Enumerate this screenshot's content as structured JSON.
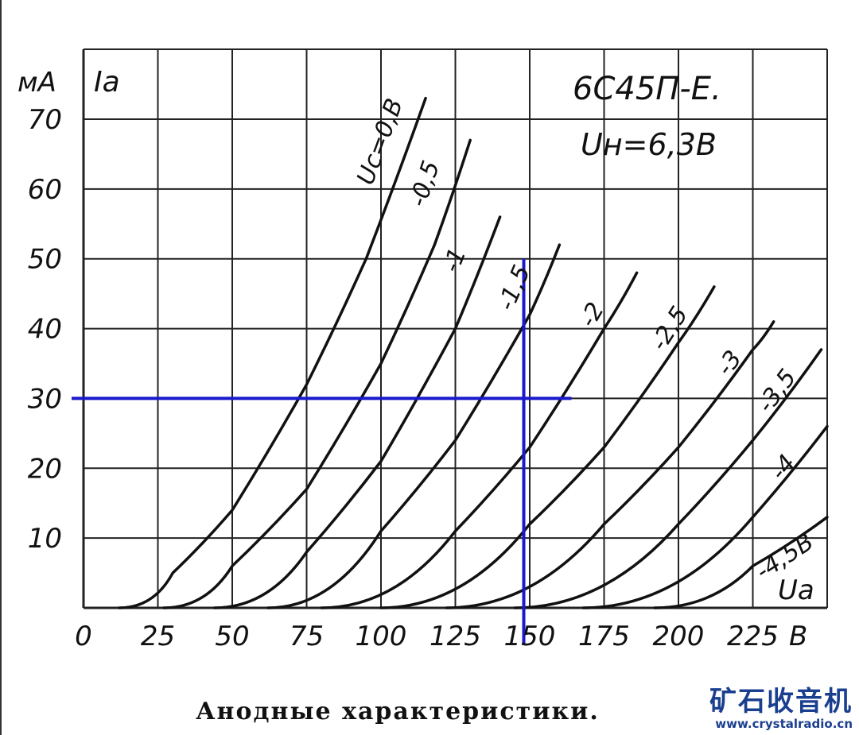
{
  "chart_data": {
    "type": "line",
    "title": "6С45П-Е.",
    "subtitle": "Uн=6,3В",
    "caption": "Анодные характеристики.",
    "ylabel_unit": "мА",
    "ylabel": "Ia",
    "xlabel": "Ua",
    "xlabel_unit": "В",
    "xlim": [
      0,
      250
    ],
    "ylim": [
      0,
      75
    ],
    "x_ticks": [
      "0",
      "25",
      "50",
      "75",
      "100",
      "125",
      "150",
      "175",
      "200",
      "225"
    ],
    "y_ticks": [
      "10",
      "20",
      "30",
      "40",
      "50",
      "60",
      "70"
    ],
    "grid": true,
    "series": [
      {
        "name": "Uc=0В",
        "label": "Uc=0,В",
        "points": [
          [
            12,
            0
          ],
          [
            30,
            5
          ],
          [
            50,
            14
          ],
          [
            75,
            32
          ],
          [
            95,
            50
          ],
          [
            115,
            73
          ]
        ]
      },
      {
        "name": "-0,5",
        "label": "-0,5",
        "points": [
          [
            27,
            0
          ],
          [
            50,
            6
          ],
          [
            75,
            17
          ],
          [
            100,
            35
          ],
          [
            118,
            52
          ],
          [
            130,
            67
          ]
        ]
      },
      {
        "name": "-1",
        "label": "-1",
        "points": [
          [
            44,
            0
          ],
          [
            75,
            8
          ],
          [
            100,
            21
          ],
          [
            125,
            40
          ],
          [
            140,
            56
          ]
        ]
      },
      {
        "name": "-1,5",
        "label": "-1,5",
        "points": [
          [
            62,
            0
          ],
          [
            100,
            11
          ],
          [
            125,
            24
          ],
          [
            150,
            42
          ],
          [
            160,
            52
          ]
        ]
      },
      {
        "name": "-2",
        "label": "-2",
        "points": [
          [
            80,
            0
          ],
          [
            125,
            11
          ],
          [
            150,
            23
          ],
          [
            175,
            40
          ],
          [
            186,
            48
          ]
        ]
      },
      {
        "name": "-2,5",
        "label": "-2,5",
        "points": [
          [
            100,
            0
          ],
          [
            150,
            12
          ],
          [
            175,
            23
          ],
          [
            200,
            38
          ],
          [
            212,
            46
          ]
        ]
      },
      {
        "name": "-3",
        "label": "-3",
        "points": [
          [
            122,
            0
          ],
          [
            175,
            12
          ],
          [
            200,
            23
          ],
          [
            225,
            37
          ],
          [
            232,
            41
          ]
        ]
      },
      {
        "name": "-3,5",
        "label": "-3,5",
        "points": [
          [
            145,
            0
          ],
          [
            200,
            12
          ],
          [
            225,
            24
          ],
          [
            248,
            37
          ]
        ]
      },
      {
        "name": "-4",
        "label": "-4",
        "points": [
          [
            168,
            0
          ],
          [
            225,
            13
          ],
          [
            250,
            26
          ]
        ]
      },
      {
        "name": "-4,5В",
        "label": "-4,5В",
        "points": [
          [
            192,
            0
          ],
          [
            225,
            6
          ],
          [
            250,
            13
          ]
        ]
      }
    ],
    "annotation": {
      "x": 148,
      "y": 30,
      "y_line_top": 50,
      "color": "#1a1acc"
    }
  },
  "watermark": {
    "title": "矿石收音机",
    "url": "www.crystalradio.cn"
  }
}
